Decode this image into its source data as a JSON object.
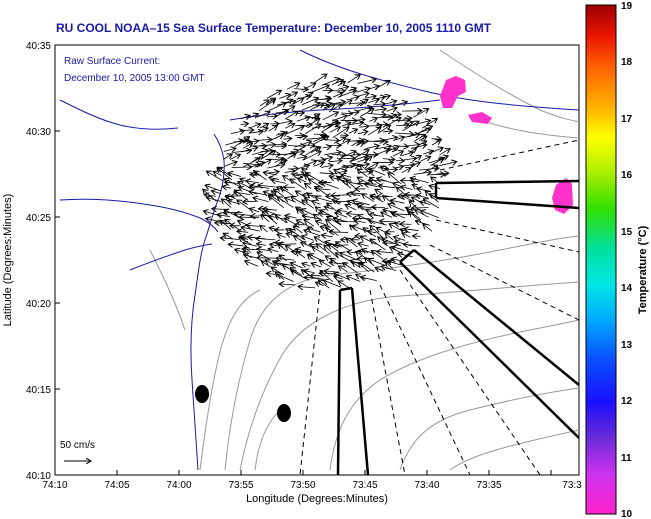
{
  "title": "RU COOL  NOAA–15  Sea Surface Temperature:  December 10, 2005 1110 GMT",
  "inset": {
    "line1": "Raw Surface Current:",
    "line2": "December 10, 2005 13:00 GMT"
  },
  "axes": {
    "xlabel": "Longitude (Degrees:Minutes)",
    "ylabel": "Latitude (Degrees:Minutes)",
    "xticks": [
      "74:10",
      "74:05",
      "74:00",
      "73:55",
      "73:50",
      "73:45",
      "73:40",
      "73:35",
      "73:3"
    ],
    "yticks": [
      "40:35",
      "40:30",
      "40:25",
      "40:20",
      "40:15",
      "40:10"
    ]
  },
  "colorbar": {
    "label": "Temperature (°C)",
    "ticks": [
      "19",
      "18",
      "17",
      "16",
      "15",
      "14",
      "13",
      "12",
      "11",
      "10"
    ],
    "min": 10,
    "max": 19
  },
  "scale_label": "50 cm/s",
  "colors": {
    "title_blue": "#1a1aa8",
    "sst_patch": "#ff33cc",
    "bathymetry": "#999999",
    "coast": "#1a1aa8"
  }
}
